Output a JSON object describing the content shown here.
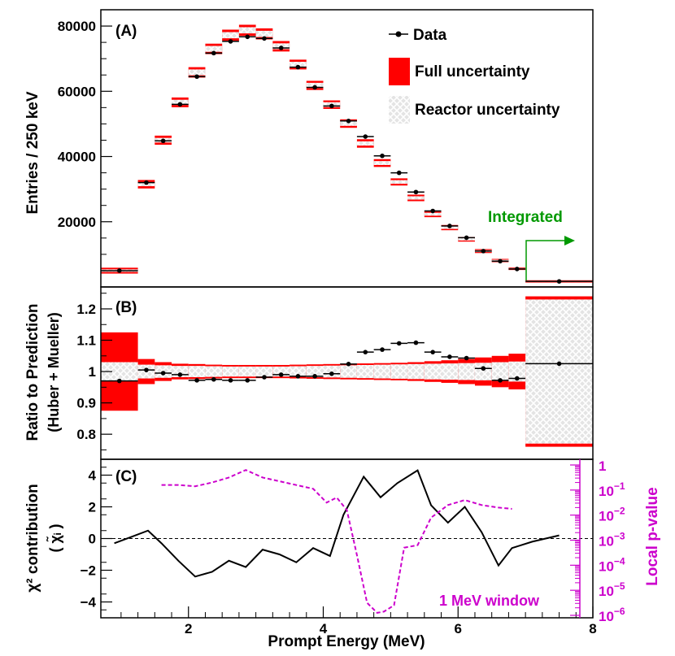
{
  "chart_data": [
    {
      "type": "bar",
      "panel_label": "(A)",
      "ylabel": "Entries / 250 keV",
      "ylim": [
        0,
        85000
      ],
      "y_ticks": [
        20000,
        40000,
        60000,
        80000
      ],
      "y_tick_labels": [
        "20000",
        "40000",
        "60000",
        "80000"
      ],
      "legend": {
        "position": "top-right",
        "entries": [
          "Data",
          "Full uncertainty",
          "Reactor uncertainty"
        ]
      },
      "annotation": "Integrated",
      "bins": [
        {
          "lo": 0.7,
          "hi": 1.25,
          "data": 5000,
          "pred": 5000,
          "full_err": 900,
          "reactor_err": 400
        },
        {
          "lo": 1.25,
          "hi": 1.5,
          "data": 32000,
          "pred": 31500,
          "full_err": 1300,
          "reactor_err": 600
        },
        {
          "lo": 1.5,
          "hi": 1.75,
          "data": 44800,
          "pred": 45000,
          "full_err": 1400,
          "reactor_err": 700
        },
        {
          "lo": 1.75,
          "hi": 2.0,
          "data": 56000,
          "pred": 56600,
          "full_err": 1500,
          "reactor_err": 800
        },
        {
          "lo": 2.0,
          "hi": 2.25,
          "data": 64500,
          "pred": 65800,
          "full_err": 1600,
          "reactor_err": 900
        },
        {
          "lo": 2.25,
          "hi": 2.5,
          "data": 71700,
          "pred": 73000,
          "full_err": 1600,
          "reactor_err": 900
        },
        {
          "lo": 2.5,
          "hi": 2.75,
          "data": 75300,
          "pred": 77200,
          "full_err": 1700,
          "reactor_err": 950
        },
        {
          "lo": 2.75,
          "hi": 3.0,
          "data": 76700,
          "pred": 78700,
          "full_err": 1700,
          "reactor_err": 950
        },
        {
          "lo": 3.0,
          "hi": 3.25,
          "data": 76200,
          "pred": 77600,
          "full_err": 1700,
          "reactor_err": 950
        },
        {
          "lo": 3.25,
          "hi": 3.5,
          "data": 73300,
          "pred": 73800,
          "full_err": 1600,
          "reactor_err": 900
        },
        {
          "lo": 3.5,
          "hi": 3.75,
          "data": 67400,
          "pred": 68200,
          "full_err": 1500,
          "reactor_err": 850
        },
        {
          "lo": 3.75,
          "hi": 4.0,
          "data": 61200,
          "pred": 61800,
          "full_err": 1400,
          "reactor_err": 800
        },
        {
          "lo": 4.0,
          "hi": 4.25,
          "data": 55500,
          "pred": 55900,
          "full_err": 1300,
          "reactor_err": 750
        },
        {
          "lo": 4.25,
          "hi": 4.5,
          "data": 50900,
          "pred": 50100,
          "full_err": 1300,
          "reactor_err": 700
        },
        {
          "lo": 4.5,
          "hi": 4.75,
          "data": 46100,
          "pred": 44000,
          "full_err": 1300,
          "reactor_err": 650
        },
        {
          "lo": 4.75,
          "hi": 5.0,
          "data": 40200,
          "pred": 38000,
          "full_err": 1200,
          "reactor_err": 600
        },
        {
          "lo": 5.0,
          "hi": 5.25,
          "data": 35000,
          "pred": 32200,
          "full_err": 1100,
          "reactor_err": 550
        },
        {
          "lo": 5.25,
          "hi": 5.5,
          "data": 29100,
          "pred": 27300,
          "full_err": 1000,
          "reactor_err": 500
        },
        {
          "lo": 5.5,
          "hi": 5.75,
          "data": 23300,
          "pred": 22300,
          "full_err": 900,
          "reactor_err": 450
        },
        {
          "lo": 5.75,
          "hi": 6.0,
          "data": 18700,
          "pred": 18200,
          "full_err": 800,
          "reactor_err": 400
        },
        {
          "lo": 6.0,
          "hi": 6.25,
          "data": 15100,
          "pred": 14600,
          "full_err": 700,
          "reactor_err": 350
        },
        {
          "lo": 6.25,
          "hi": 6.5,
          "data": 11000,
          "pred": 11000,
          "full_err": 600,
          "reactor_err": 300
        },
        {
          "lo": 6.5,
          "hi": 6.75,
          "data": 7900,
          "pred": 8100,
          "full_err": 500,
          "reactor_err": 250
        },
        {
          "lo": 6.75,
          "hi": 7.0,
          "data": 5500,
          "pred": 5600,
          "full_err": 400,
          "reactor_err": 200
        },
        {
          "lo": 7.0,
          "hi": 8.0,
          "data": 1700,
          "pred": 1700,
          "full_err": 350,
          "reactor_err": 180
        }
      ]
    },
    {
      "type": "bar",
      "panel_label": "(B)",
      "ylabel_line1": "Ratio to Prediction",
      "ylabel_line2": "(Huber + Mueller)",
      "ylim": [
        0.72,
        1.27
      ],
      "y_ticks": [
        0.8,
        0.9,
        1.0,
        1.1,
        1.2
      ],
      "y_tick_labels": [
        "0.8",
        "0.9",
        "1",
        "1.1",
        "1.2"
      ],
      "bins": [
        {
          "lo": 0.7,
          "hi": 1.25,
          "ratio": 0.97,
          "full_err": 0.125,
          "reactor_err": 0.03
        },
        {
          "lo": 1.25,
          "hi": 1.5,
          "ratio": 1.005,
          "full_err": 0.04,
          "reactor_err": 0.022
        },
        {
          "lo": 1.5,
          "hi": 1.75,
          "ratio": 0.995,
          "full_err": 0.03,
          "reactor_err": 0.02
        },
        {
          "lo": 1.75,
          "hi": 2.0,
          "ratio": 0.99,
          "full_err": 0.025,
          "reactor_err": 0.018
        },
        {
          "lo": 2.0,
          "hi": 2.25,
          "ratio": 0.972,
          "full_err": 0.024,
          "reactor_err": 0.018
        },
        {
          "lo": 2.25,
          "hi": 2.5,
          "ratio": 0.975,
          "full_err": 0.022,
          "reactor_err": 0.017
        },
        {
          "lo": 2.5,
          "hi": 2.75,
          "ratio": 0.972,
          "full_err": 0.021,
          "reactor_err": 0.016
        },
        {
          "lo": 2.75,
          "hi": 3.0,
          "ratio": 0.972,
          "full_err": 0.021,
          "reactor_err": 0.016
        },
        {
          "lo": 3.0,
          "hi": 3.25,
          "ratio": 0.982,
          "full_err": 0.021,
          "reactor_err": 0.016
        },
        {
          "lo": 3.25,
          "hi": 3.5,
          "ratio": 0.99,
          "full_err": 0.021,
          "reactor_err": 0.016
        },
        {
          "lo": 3.5,
          "hi": 3.75,
          "ratio": 0.985,
          "full_err": 0.022,
          "reactor_err": 0.017
        },
        {
          "lo": 3.75,
          "hi": 4.0,
          "ratio": 0.985,
          "full_err": 0.023,
          "reactor_err": 0.018
        },
        {
          "lo": 4.0,
          "hi": 4.25,
          "ratio": 0.993,
          "full_err": 0.024,
          "reactor_err": 0.019
        },
        {
          "lo": 4.25,
          "hi": 4.5,
          "ratio": 1.024,
          "full_err": 0.025,
          "reactor_err": 0.02
        },
        {
          "lo": 4.5,
          "hi": 4.75,
          "ratio": 1.062,
          "full_err": 0.026,
          "reactor_err": 0.021
        },
        {
          "lo": 4.75,
          "hi": 5.0,
          "ratio": 1.07,
          "full_err": 0.027,
          "reactor_err": 0.022
        },
        {
          "lo": 5.0,
          "hi": 5.25,
          "ratio": 1.09,
          "full_err": 0.028,
          "reactor_err": 0.023
        },
        {
          "lo": 5.25,
          "hi": 5.5,
          "ratio": 1.092,
          "full_err": 0.03,
          "reactor_err": 0.024
        },
        {
          "lo": 5.5,
          "hi": 5.75,
          "ratio": 1.062,
          "full_err": 0.033,
          "reactor_err": 0.025
        },
        {
          "lo": 5.75,
          "hi": 6.0,
          "ratio": 1.047,
          "full_err": 0.036,
          "reactor_err": 0.026
        },
        {
          "lo": 6.0,
          "hi": 6.25,
          "ratio": 1.043,
          "full_err": 0.04,
          "reactor_err": 0.027
        },
        {
          "lo": 6.25,
          "hi": 6.5,
          "ratio": 1.01,
          "full_err": 0.045,
          "reactor_err": 0.028
        },
        {
          "lo": 6.5,
          "hi": 6.75,
          "ratio": 0.972,
          "full_err": 0.05,
          "reactor_err": 0.03
        },
        {
          "lo": 6.75,
          "hi": 7.0,
          "ratio": 0.978,
          "full_err": 0.057,
          "reactor_err": 0.032
        },
        {
          "lo": 7.0,
          "hi": 8.0,
          "ratio": 1.025,
          "full_err": 0.24,
          "reactor_err": 0.23
        }
      ]
    },
    {
      "type": "line",
      "panel_label": "(C)",
      "xlabel": "Prompt Energy (MeV)",
      "ylabel_line1": "χ² contribution",
      "ylabel_line2": "( χ̃ᵢ )",
      "right_ylabel": "Local p-value",
      "xlim": [
        0.7,
        8.0
      ],
      "ylim": [
        -5,
        5
      ],
      "x_ticks": [
        2,
        4,
        6,
        8
      ],
      "x_tick_labels": [
        "2",
        "4",
        "6",
        "8"
      ],
      "y_ticks": [
        -4,
        -2,
        0,
        2,
        4
      ],
      "y_tick_labels": [
        "−4",
        "−2",
        "0",
        "2",
        "4"
      ],
      "right_axis": {
        "log_range": [
          -6,
          0
        ],
        "ticks": [
          0,
          -1,
          -2,
          -3,
          -4,
          -5,
          -6
        ],
        "tick_labels": [
          {
            "base": "1",
            "exp": ""
          },
          {
            "base": "10",
            "exp": "−1"
          },
          {
            "base": "10",
            "exp": "−2"
          },
          {
            "base": "10",
            "exp": "−3"
          },
          {
            "base": "10",
            "exp": "−4"
          },
          {
            "base": "10",
            "exp": "−5"
          },
          {
            "base": "10",
            "exp": "−6"
          }
        ]
      },
      "annotation": "1 MeV window",
      "series": [
        {
          "name": "chi2 contribution",
          "x": [
            0.9,
            1.15,
            1.4,
            1.6,
            1.85,
            2.1,
            2.35,
            2.6,
            2.85,
            3.1,
            3.35,
            3.6,
            3.85,
            4.1,
            4.3,
            4.6,
            4.85,
            5.1,
            5.4,
            5.6,
            5.85,
            6.1,
            6.35,
            6.6,
            6.8,
            7.1,
            7.5
          ],
          "values": [
            -0.3,
            0.1,
            0.5,
            -0.3,
            -1.4,
            -2.4,
            -2.1,
            -1.4,
            -1.8,
            -0.7,
            -1.0,
            -1.5,
            -0.6,
            -1.1,
            1.5,
            3.9,
            2.6,
            3.5,
            4.3,
            2.1,
            1.0,
            2.0,
            0.4,
            -1.7,
            -0.6,
            -0.2,
            0.2
          ]
        },
        {
          "name": "local p-value (log10)",
          "x": [
            1.6,
            1.85,
            2.1,
            2.35,
            2.6,
            2.85,
            3.1,
            3.35,
            3.6,
            3.85,
            4.05,
            4.2,
            4.35,
            4.5,
            4.65,
            4.8,
            4.9,
            5.05,
            5.2,
            5.4,
            5.6,
            5.85,
            6.1,
            6.35,
            6.6,
            6.8
          ],
          "values": [
            -0.8,
            -0.8,
            -0.85,
            -0.7,
            -0.5,
            -0.2,
            -0.5,
            -0.65,
            -0.8,
            -0.95,
            -1.5,
            -1.3,
            -1.8,
            -3.6,
            -5.5,
            -5.9,
            -5.85,
            -5.6,
            -3.3,
            -3.2,
            -2.1,
            -1.6,
            -1.4,
            -1.6,
            -1.7,
            -1.75
          ]
        }
      ]
    }
  ]
}
